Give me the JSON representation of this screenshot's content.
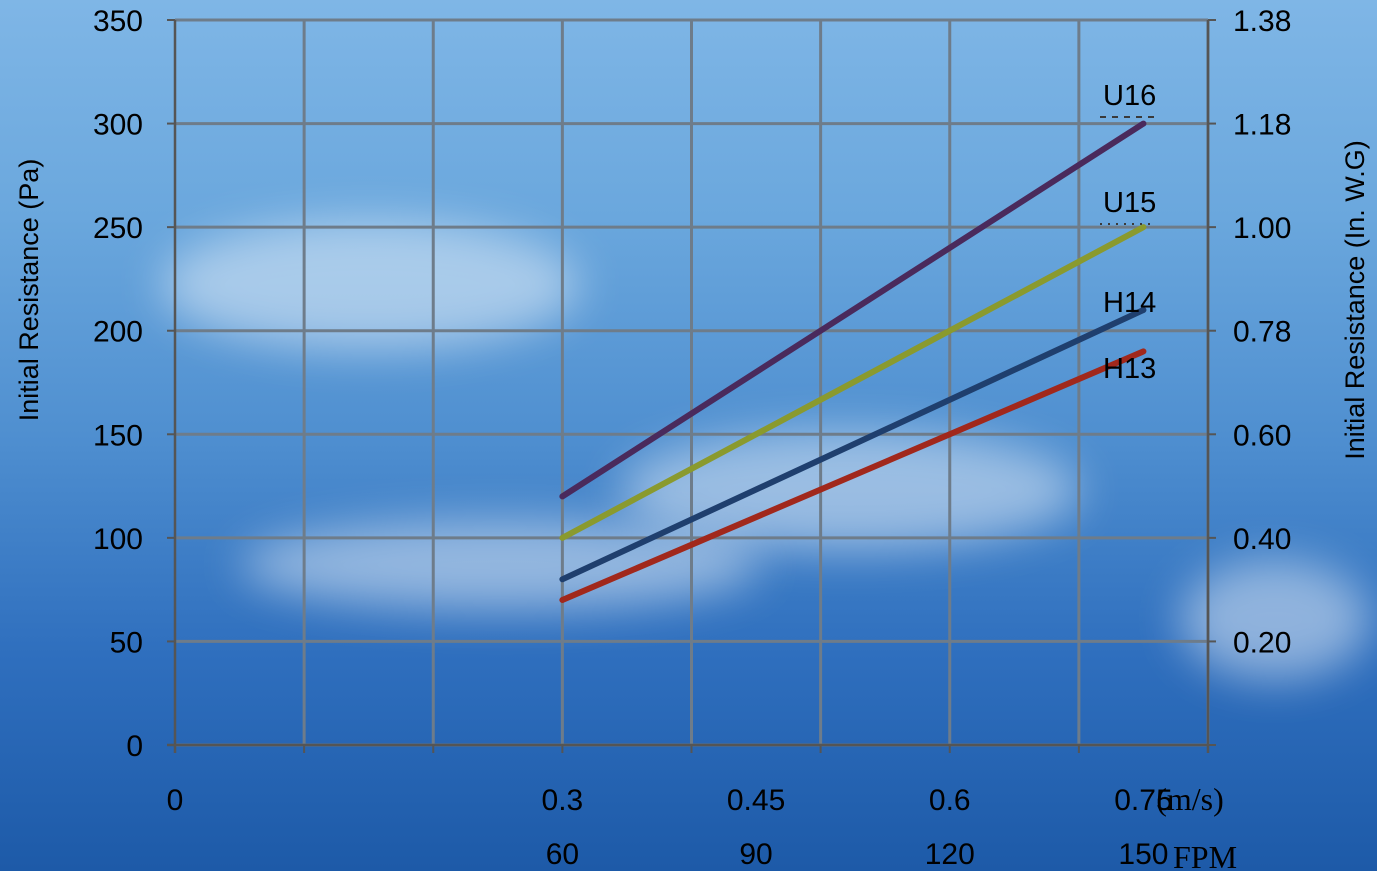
{
  "chart_data": {
    "type": "line",
    "title": "",
    "ylabel_left": "Initial  Resistance (Pa)",
    "ylabel_right": "Initial  Resistance (In. W.G)",
    "ylim": [
      0,
      350
    ],
    "y_ticks": [
      "0",
      "50",
      "100",
      "150",
      "200",
      "250",
      "300",
      "350"
    ],
    "right_ticks": [
      {
        "label": "0.20",
        "pa": 50
      },
      {
        "label": "0.40",
        "pa": 100
      },
      {
        "label": "0.60",
        "pa": 150
      },
      {
        "label": "0.78",
        "pa": 200
      },
      {
        "label": "1.00",
        "pa": 250
      },
      {
        "label": "1.18",
        "pa": 300
      },
      {
        "label": "1.38",
        "pa": 350
      }
    ],
    "xlim": [
      0,
      0.8
    ],
    "x_ticks_ms": [
      {
        "label": "0",
        "v": 0
      },
      {
        "label": "0.3",
        "v": 0.3
      },
      {
        "label": "0.45",
        "v": 0.45
      },
      {
        "label": "0.6",
        "v": 0.6
      },
      {
        "label": "0.75",
        "v": 0.75
      }
    ],
    "x_unit_ms": "(m/s)",
    "x_ticks_fpm": [
      {
        "label": "60",
        "v": 0.3
      },
      {
        "label": "90",
        "v": 0.45
      },
      {
        "label": "120",
        "v": 0.6
      },
      {
        "label": "150",
        "v": 0.75
      }
    ],
    "x_unit_fpm": "FPM",
    "grid": true,
    "series": [
      {
        "name": "U16",
        "color": "#4a2a5c",
        "x": [
          0.3,
          0.75
        ],
        "values": [
          120,
          300
        ]
      },
      {
        "name": "U15",
        "color": "#8a9a2e",
        "x": [
          0.3,
          0.75
        ],
        "values": [
          100,
          250
        ]
      },
      {
        "name": "H14",
        "color": "#1f3f6e",
        "x": [
          0.3,
          0.75
        ],
        "values": [
          80,
          210
        ]
      },
      {
        "name": "H13",
        "color": "#a1281c",
        "x": [
          0.3,
          0.75
        ],
        "values": [
          70,
          190
        ]
      }
    ]
  }
}
